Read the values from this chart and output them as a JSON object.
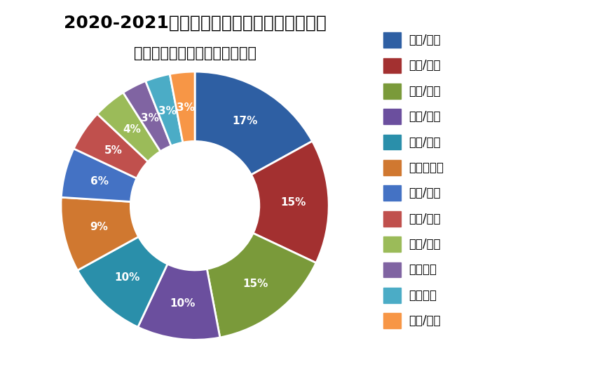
{
  "title1": "2020-2021年一季度全球区块链应用行业分布",
  "title2": "（未包含金融应用与政务应用）",
  "labels": [
    "农业/食品",
    "能源/环保",
    "文化/传媒",
    "生物/医疗",
    "交通/物流",
    "区块链设施",
    "商业/消费",
    "公益/慈善",
    "工业/制造",
    "企业服务",
    "教育培训",
    "建筑/地产"
  ],
  "values": [
    17,
    15,
    15,
    10,
    10,
    9,
    6,
    5,
    4,
    3,
    3,
    3
  ],
  "colors": [
    "#2E5FA3",
    "#A33030",
    "#7A9A3A",
    "#6B4F9E",
    "#2A8FAA",
    "#D07830",
    "#4472C4",
    "#C0504D",
    "#9BBB59",
    "#8064A2",
    "#4BACC6",
    "#F79646"
  ],
  "pct_labels": [
    "17%",
    "15%",
    "15%",
    "10%",
    "10%",
    "9%",
    "6%",
    "5%",
    "4%",
    "3%",
    "3%",
    "3%"
  ],
  "bg_color": "#FFFFFF",
  "text_color": "#000000",
  "title_fontsize": 18,
  "subtitle_fontsize": 15,
  "legend_fontsize": 12,
  "pct_fontsize": 11
}
